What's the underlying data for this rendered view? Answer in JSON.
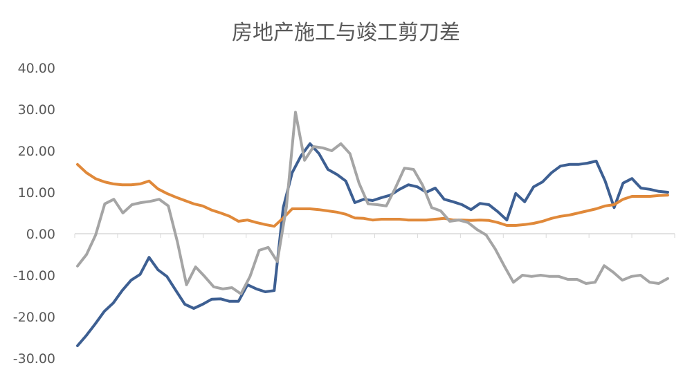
{
  "chart_data": {
    "type": "line",
    "title": "房地产施工与竣工剪刀差",
    "xlabel": "",
    "ylabel": "",
    "ylim": [
      -30,
      40
    ],
    "yticks": [
      "40.00",
      "30.00",
      "20.00",
      "10.00",
      "0.00",
      "-10.00",
      "-20.00",
      "-30.00"
    ],
    "grid": false,
    "colors": [
      "#3d5f92",
      "#e0893a",
      "#a5a5a5"
    ],
    "series": [
      {
        "values": [
          -27,
          -24.5,
          -21.7,
          -18.7,
          -16.7,
          -13.7,
          -11.2,
          -9.8,
          -5.7,
          -8.7,
          -10.3,
          -13.7,
          -17,
          -18,
          -17,
          -15.8,
          -15.7,
          -16.3,
          -16.3,
          -12.3,
          -13.3,
          -14,
          -13.7,
          6.3,
          14.7,
          18.8,
          21.7,
          19.3,
          15.5,
          14.3,
          12.7,
          7.5,
          8.3,
          8,
          8.7,
          9.3,
          10.7,
          11.8,
          11.3,
          10,
          11,
          8.3,
          7.7,
          7,
          5.8,
          7.3,
          7,
          5.3,
          3.3,
          9.7,
          7.7,
          11.3,
          12.5,
          14.7,
          16.3,
          16.7,
          16.7,
          17,
          17.5,
          12.7,
          6.3,
          12.2,
          13.3,
          11,
          10.7,
          10.2,
          10
        ]
      },
      {
        "values": [
          16.7,
          14.7,
          13.3,
          12.5,
          12,
          11.8,
          11.8,
          12,
          12.7,
          10.8,
          9.7,
          8.8,
          8,
          7.2,
          6.7,
          5.7,
          5,
          4.2,
          3,
          3.3,
          2.7,
          2.2,
          1.8,
          3.8,
          6,
          6,
          6,
          5.8,
          5.5,
          5.2,
          4.7,
          3.8,
          3.7,
          3.3,
          3.5,
          3.5,
          3.5,
          3.3,
          3.3,
          3.3,
          3.5,
          3.7,
          3.3,
          3.3,
          3.2,
          3.3,
          3.2,
          2.7,
          2,
          2,
          2.2,
          2.5,
          3,
          3.7,
          4.2,
          4.5,
          5,
          5.5,
          6,
          6.7,
          7,
          8.3,
          9,
          9,
          9,
          9.2,
          9.3
        ]
      },
      {
        "values": [
          -7.8,
          -5,
          -0.3,
          7.2,
          8.3,
          5,
          7,
          7.5,
          7.8,
          8.3,
          6.7,
          -2,
          -12.3,
          -8,
          -10.3,
          -12.8,
          -13.3,
          -13,
          -14.5,
          -10.3,
          -4,
          -3.3,
          -6.7,
          6.3,
          29.3,
          17.7,
          21,
          20.7,
          20,
          21.7,
          19.3,
          12.2,
          7.2,
          7,
          6.7,
          11,
          15.8,
          15.5,
          11.7,
          6.3,
          5.5,
          3,
          3.3,
          2.7,
          1,
          -0.3,
          -3.7,
          -7.8,
          -11.7,
          -10,
          -10.3,
          -10,
          -10.3,
          -10.3,
          -11,
          -11,
          -12,
          -11.7,
          -7.7,
          -9.3,
          -11.2,
          -10.3,
          -10,
          -11.7,
          -12,
          -10.8
        ]
      }
    ]
  }
}
